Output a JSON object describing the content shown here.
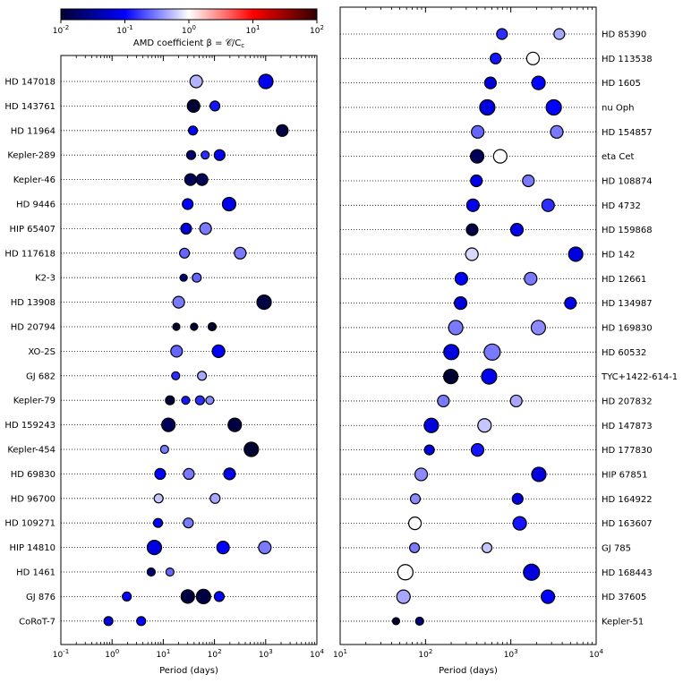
{
  "colorbar": {
    "label": "AMD coefficient β = 𝒞/C",
    "label_sub": "c",
    "ticks": [
      {
        "exp": "-2",
        "value": 0.01
      },
      {
        "exp": "-1",
        "value": 0.1
      },
      {
        "exp": "0",
        "value": 1
      },
      {
        "exp": "1",
        "value": 10
      },
      {
        "exp": "2",
        "value": 100
      }
    ],
    "scale": "log",
    "range": [
      0.01,
      100
    ],
    "colors": {
      "low": "#000033",
      "mid_low": "#0000ff",
      "center": "#ffffff",
      "mid_high": "#ff0000",
      "high": "#330000"
    }
  },
  "chart_data": [
    {
      "type": "scatter",
      "xlabel": "Period (days)",
      "xscale": "log",
      "xlim": [
        0.1,
        10000
      ],
      "xticks": [
        {
          "exp": "-1",
          "value": 0.1
        },
        {
          "exp": "0",
          "value": 1
        },
        {
          "exp": "1",
          "value": 10
        },
        {
          "exp": "2",
          "value": 100
        },
        {
          "exp": "3",
          "value": 1000
        },
        {
          "exp": "4",
          "value": 10000
        }
      ],
      "ylabel_side": "left",
      "grid": "dotted horizontal",
      "systems": [
        {
          "name": "HD 147018",
          "planets": [
            {
              "p": 44,
              "r": 7,
              "beta": 0.5
            },
            {
              "p": 1008,
              "r": 8,
              "beta": 0.08
            }
          ]
        },
        {
          "name": "HD 143761",
          "planets": [
            {
              "p": 39,
              "r": 7,
              "beta": 0.01
            },
            {
              "p": 102,
              "r": 5.5,
              "beta": 0.12
            }
          ]
        },
        {
          "name": "HD 11964",
          "planets": [
            {
              "p": 38,
              "r": 5,
              "beta": 0.1
            },
            {
              "p": 2110,
              "r": 6.5,
              "beta": 0.012
            }
          ]
        },
        {
          "name": "Kepler-289",
          "planets": [
            {
              "p": 35,
              "r": 5,
              "beta": 0.02
            },
            {
              "p": 66,
              "r": 4.5,
              "beta": 0.15
            },
            {
              "p": 126,
              "r": 6,
              "beta": 0.08
            }
          ]
        },
        {
          "name": "Kepler-46",
          "planets": [
            {
              "p": 34,
              "r": 6.5,
              "beta": 0.015
            },
            {
              "p": 57,
              "r": 6.5,
              "beta": 0.015
            }
          ]
        },
        {
          "name": "HD 9446",
          "planets": [
            {
              "p": 30,
              "r": 6,
              "beta": 0.1
            },
            {
              "p": 193,
              "r": 7.5,
              "beta": 0.08
            }
          ]
        },
        {
          "name": "HIP 65407",
          "planets": [
            {
              "p": 28,
              "r": 6,
              "beta": 0.07
            },
            {
              "p": 67,
              "r": 6.5,
              "beta": 0.3
            }
          ]
        },
        {
          "name": "HD 117618",
          "planets": [
            {
              "p": 26,
              "r": 5.5,
              "beta": 0.25
            },
            {
              "p": 318,
              "r": 6.5,
              "beta": 0.3
            }
          ]
        },
        {
          "name": "K2-3",
          "planets": [
            {
              "p": 25,
              "r": 4,
              "beta": 0.02
            },
            {
              "p": 45,
              "r": 5,
              "beta": 0.25
            }
          ]
        },
        {
          "name": "HD 13908",
          "planets": [
            {
              "p": 20,
              "r": 6.5,
              "beta": 0.3
            },
            {
              "p": 931,
              "r": 8,
              "beta": 0.012
            }
          ]
        },
        {
          "name": "HD 20794",
          "planets": [
            {
              "p": 18,
              "r": 4,
              "beta": 0.01
            },
            {
              "p": 40,
              "r": 4,
              "beta": 0.01
            },
            {
              "p": 90,
              "r": 4.5,
              "beta": 0.01
            }
          ]
        },
        {
          "name": "XO-2S",
          "planets": [
            {
              "p": 18.2,
              "r": 6.5,
              "beta": 0.25
            },
            {
              "p": 120,
              "r": 7,
              "beta": 0.1
            }
          ]
        },
        {
          "name": "GJ 682",
          "planets": [
            {
              "p": 17.5,
              "r": 4.5,
              "beta": 0.15
            },
            {
              "p": 57,
              "r": 5,
              "beta": 0.45
            }
          ]
        },
        {
          "name": "Kepler-79",
          "planets": [
            {
              "p": 13.5,
              "r": 5,
              "beta": 0.01
            },
            {
              "p": 27.4,
              "r": 4.5,
              "beta": 0.12
            },
            {
              "p": 52,
              "r": 5,
              "beta": 0.15
            },
            {
              "p": 81,
              "r": 4.5,
              "beta": 0.35
            }
          ]
        },
        {
          "name": "HD 159243",
          "planets": [
            {
              "p": 12.6,
              "r": 7.5,
              "beta": 0.015
            },
            {
              "p": 249,
              "r": 7.5,
              "beta": 0.012
            }
          ]
        },
        {
          "name": "Kepler-454",
          "planets": [
            {
              "p": 10.6,
              "r": 4.5,
              "beta": 0.3
            },
            {
              "p": 524,
              "r": 8,
              "beta": 0.01
            }
          ]
        },
        {
          "name": "HD 69830",
          "planets": [
            {
              "p": 8.7,
              "r": 6,
              "beta": 0.1
            },
            {
              "p": 31.6,
              "r": 6,
              "beta": 0.3
            },
            {
              "p": 197,
              "r": 6.5,
              "beta": 0.08
            }
          ]
        },
        {
          "name": "HD 96700",
          "planets": [
            {
              "p": 8.1,
              "r": 5,
              "beta": 0.6
            },
            {
              "p": 103,
              "r": 5.5,
              "beta": 0.45
            }
          ]
        },
        {
          "name": "HD 109271",
          "planets": [
            {
              "p": 7.9,
              "r": 5,
              "beta": 0.1
            },
            {
              "p": 30.9,
              "r": 5.5,
              "beta": 0.3
            }
          ]
        },
        {
          "name": "HIP 14810",
          "planets": [
            {
              "p": 6.7,
              "r": 8,
              "beta": 0.07
            },
            {
              "p": 147,
              "r": 7,
              "beta": 0.1
            },
            {
              "p": 962,
              "r": 7,
              "beta": 0.3
            }
          ]
        },
        {
          "name": "HD 1461",
          "planets": [
            {
              "p": 5.8,
              "r": 4.5,
              "beta": 0.02
            },
            {
              "p": 13.5,
              "r": 4.5,
              "beta": 0.25
            }
          ]
        },
        {
          "name": "GJ 876",
          "planets": [
            {
              "p": 1.94,
              "r": 5,
              "beta": 0.1
            },
            {
              "p": 30.1,
              "r": 7.5,
              "beta": 0.012
            },
            {
              "p": 61,
              "r": 8,
              "beta": 0.012
            },
            {
              "p": 124,
              "r": 5.5,
              "beta": 0.1
            }
          ]
        },
        {
          "name": "CoRoT-7",
          "planets": [
            {
              "p": 0.85,
              "r": 5,
              "beta": 0.07
            },
            {
              "p": 3.7,
              "r": 5,
              "beta": 0.1
            }
          ]
        }
      ]
    },
    {
      "type": "scatter",
      "xlabel": "Period (days)",
      "xscale": "log",
      "xlim": [
        10,
        10000
      ],
      "xticks": [
        {
          "exp": "1",
          "value": 10
        },
        {
          "exp": "2",
          "value": 100
        },
        {
          "exp": "3",
          "value": 1000
        },
        {
          "exp": "4",
          "value": 10000
        }
      ],
      "ylabel_side": "right",
      "grid": "dotted horizontal",
      "systems": [
        {
          "name": "HD 85390",
          "planets": [
            {
              "p": 788,
              "r": 6,
              "beta": 0.15
            },
            {
              "p": 3700,
              "r": 6,
              "beta": 0.45
            }
          ]
        },
        {
          "name": "HD 113538",
          "planets": [
            {
              "p": 663,
              "r": 6,
              "beta": 0.12
            },
            {
              "p": 1818,
              "r": 7,
              "beta": 1.0
            }
          ]
        },
        {
          "name": "HD 1605",
          "planets": [
            {
              "p": 577,
              "r": 6.5,
              "beta": 0.07
            },
            {
              "p": 2111,
              "r": 7.5,
              "beta": 0.1
            }
          ]
        },
        {
          "name": "nu Oph",
          "planets": [
            {
              "p": 530,
              "r": 8.5,
              "beta": 0.07
            },
            {
              "p": 3185,
              "r": 8.5,
              "beta": 0.1
            }
          ]
        },
        {
          "name": "HD 154857",
          "planets": [
            {
              "p": 409,
              "r": 7,
              "beta": 0.25
            },
            {
              "p": 3452,
              "r": 7,
              "beta": 0.3
            }
          ]
        },
        {
          "name": "eta Cet",
          "planets": [
            {
              "p": 403,
              "r": 7.5,
              "beta": 0.015
            },
            {
              "p": 751,
              "r": 7.5,
              "beta": 1.0
            }
          ]
        },
        {
          "name": "HD 108874",
          "planets": [
            {
              "p": 395,
              "r": 6.5,
              "beta": 0.08
            },
            {
              "p": 1605,
              "r": 6.5,
              "beta": 0.3
            }
          ]
        },
        {
          "name": "HD 4732",
          "planets": [
            {
              "p": 360,
              "r": 7,
              "beta": 0.08
            },
            {
              "p": 2732,
              "r": 7,
              "beta": 0.15
            }
          ]
        },
        {
          "name": "HD 159868",
          "planets": [
            {
              "p": 352,
              "r": 6.5,
              "beta": 0.012
            },
            {
              "p": 1178,
              "r": 7,
              "beta": 0.08
            }
          ]
        },
        {
          "name": "HD 142",
          "planets": [
            {
              "p": 350,
              "r": 7,
              "beta": 0.7
            },
            {
              "p": 5760,
              "r": 8,
              "beta": 0.07
            }
          ]
        },
        {
          "name": "HD 12661",
          "planets": [
            {
              "p": 263,
              "r": 7,
              "beta": 0.1
            },
            {
              "p": 1708,
              "r": 7,
              "beta": 0.3
            }
          ]
        },
        {
          "name": "HD 134987",
          "planets": [
            {
              "p": 258,
              "r": 7,
              "beta": 0.07
            },
            {
              "p": 5000,
              "r": 6.5,
              "beta": 0.08
            }
          ]
        },
        {
          "name": "HD 169830",
          "planets": [
            {
              "p": 226,
              "r": 8,
              "beta": 0.3
            },
            {
              "p": 2102,
              "r": 8,
              "beta": 0.35
            }
          ]
        },
        {
          "name": "HD 60532",
          "planets": [
            {
              "p": 201,
              "r": 8.5,
              "beta": 0.07
            },
            {
              "p": 605,
              "r": 9,
              "beta": 0.3
            }
          ]
        },
        {
          "name": "TYC+1422-614-1",
          "planets": [
            {
              "p": 198,
              "r": 8,
              "beta": 0.01
            },
            {
              "p": 557,
              "r": 8.5,
              "beta": 0.08
            }
          ]
        },
        {
          "name": "HD 207832",
          "planets": [
            {
              "p": 162,
              "r": 6.5,
              "beta": 0.3
            },
            {
              "p": 1156,
              "r": 6.5,
              "beta": 0.45
            }
          ]
        },
        {
          "name": "HD 147873",
          "planets": [
            {
              "p": 117,
              "r": 8,
              "beta": 0.07
            },
            {
              "p": 492,
              "r": 7.5,
              "beta": 0.6
            }
          ]
        },
        {
          "name": "HD 177830",
          "planets": [
            {
              "p": 111,
              "r": 5.5,
              "beta": 0.07
            },
            {
              "p": 407,
              "r": 7,
              "beta": 0.12
            }
          ]
        },
        {
          "name": "HIP 67851",
          "planets": [
            {
              "p": 89,
              "r": 7,
              "beta": 0.35
            },
            {
              "p": 2131,
              "r": 8,
              "beta": 0.07
            }
          ]
        },
        {
          "name": "HD 164922",
          "planets": [
            {
              "p": 76,
              "r": 5.5,
              "beta": 0.35
            },
            {
              "p": 1201,
              "r": 6,
              "beta": 0.07
            }
          ]
        },
        {
          "name": "HD 163607",
          "planets": [
            {
              "p": 75.2,
              "r": 7,
              "beta": 1.0
            },
            {
              "p": 1272,
              "r": 7.5,
              "beta": 0.12
            }
          ]
        },
        {
          "name": "GJ 785",
          "planets": [
            {
              "p": 74.4,
              "r": 5.5,
              "beta": 0.3
            },
            {
              "p": 525,
              "r": 5.5,
              "beta": 0.6
            }
          ]
        },
        {
          "name": "HD 168443",
          "planets": [
            {
              "p": 58.1,
              "r": 8.5,
              "beta": 1.0
            },
            {
              "p": 1748,
              "r": 9,
              "beta": 0.07
            }
          ]
        },
        {
          "name": "HD 37605",
          "planets": [
            {
              "p": 55.2,
              "r": 7.5,
              "beta": 0.45
            },
            {
              "p": 2720,
              "r": 7.5,
              "beta": 0.1
            }
          ]
        },
        {
          "name": "Kepler-51",
          "planets": [
            {
              "p": 45.2,
              "r": 4,
              "beta": 0.01
            },
            {
              "p": 85.3,
              "r": 4.5,
              "beta": 0.02
            }
          ]
        }
      ]
    }
  ]
}
